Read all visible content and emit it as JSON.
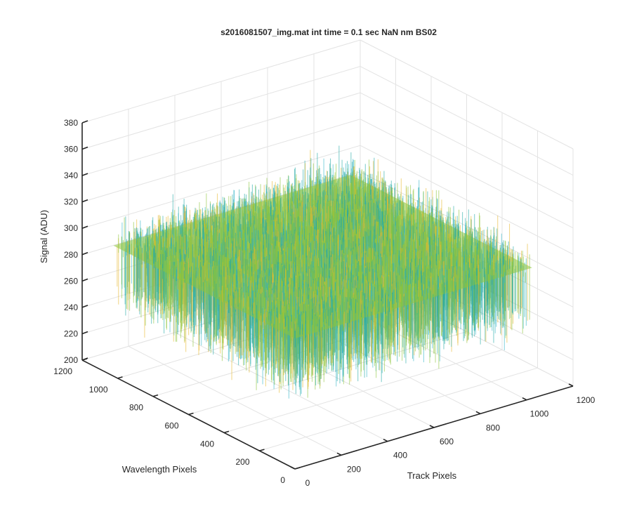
{
  "chart_data": {
    "type": "surface",
    "title": "s2016081507_img.mat int time = 0.1 sec  NaN nm BS02",
    "zlabel": "Signal (ADU)",
    "xlabel": "Track Pixels",
    "ylabel": "Wavelength Pixels",
    "xlim": [
      0,
      1200
    ],
    "ylim": [
      0,
      1200
    ],
    "zlim": [
      200,
      380
    ],
    "x_ticks": [
      "0",
      "200",
      "400",
      "600",
      "800",
      "1000",
      "1200"
    ],
    "y_ticks": [
      "0",
      "200",
      "400",
      "600",
      "800",
      "1000",
      "1200"
    ],
    "z_ticks": [
      "200",
      "220",
      "240",
      "260",
      "280",
      "300",
      "320",
      "340",
      "360",
      "380"
    ],
    "surface": {
      "x_range": [
        0,
        1024
      ],
      "y_range": [
        0,
        1024
      ],
      "mean_signal": 285,
      "noise_min": 250,
      "noise_max": 345
    },
    "grid": true,
    "colors": {
      "green": "#8ec43c",
      "teal": "#23a9a5",
      "yellow": "#e8b830",
      "cyan": "#35b7c8"
    }
  }
}
